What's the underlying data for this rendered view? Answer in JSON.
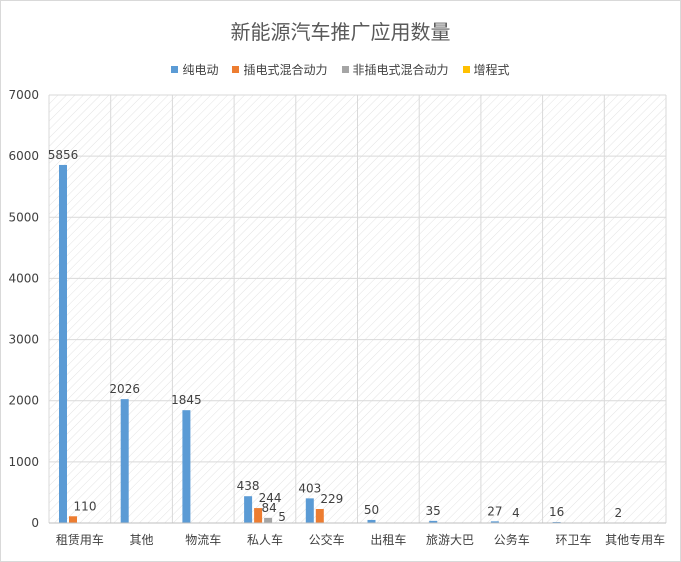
{
  "chart_data": {
    "type": "bar",
    "title": "新能源汽车推广应用数量",
    "categories": [
      "租赁用车",
      "其他",
      "物流车",
      "私人车",
      "公交车",
      "出租车",
      "旅游大巴",
      "公务车",
      "环卫车",
      "其他专用车"
    ],
    "series": [
      {
        "name": "纯电动",
        "color": "#5b9bd5",
        "values": [
          5856,
          2026,
          1845,
          438,
          403,
          50,
          35,
          27,
          16,
          2
        ]
      },
      {
        "name": "插电式混合动力",
        "color": "#ed7d31",
        "values": [
          110,
          null,
          null,
          244,
          229,
          null,
          null,
          null,
          null,
          null
        ]
      },
      {
        "name": "非插电式混合动力",
        "color": "#a5a5a5",
        "values": [
          null,
          null,
          null,
          84,
          null,
          null,
          null,
          4,
          null,
          null
        ]
      },
      {
        "name": "增程式",
        "color": "#ffc000",
        "values": [
          null,
          null,
          null,
          5,
          null,
          null,
          null,
          null,
          null,
          null
        ]
      }
    ],
    "ylim": [
      0,
      7000
    ],
    "yticks": [
      0,
      1000,
      2000,
      3000,
      4000,
      5000,
      6000,
      7000
    ],
    "xlabel": "",
    "ylabel": "",
    "grid": true,
    "legend_position": "top",
    "data_labels": true
  }
}
